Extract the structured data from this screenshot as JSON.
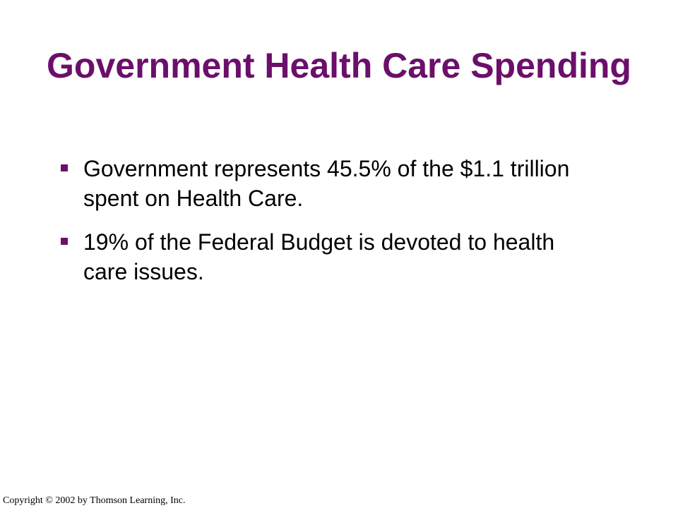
{
  "slide": {
    "title": "Government Health Care Spending",
    "bullets": [
      {
        "icon": "square-bullet-icon",
        "text": "Government represents 45.5% of the $1.1 trillion spent on Health Care."
      },
      {
        "icon": "square-bullet-icon",
        "text": "19% of the Federal Budget is devoted to health care issues."
      }
    ],
    "footer": {
      "copyright": "Copyright © 2002 by Thomson Learning, Inc."
    },
    "colors": {
      "title": "#6b0f6b",
      "bullet": "#6b0f6b",
      "text": "#000000",
      "background": "#ffffff"
    }
  }
}
